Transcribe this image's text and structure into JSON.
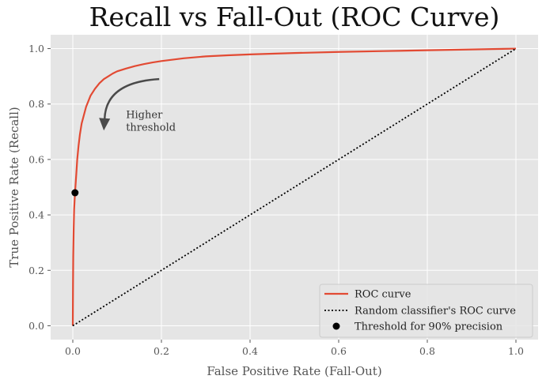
{
  "chart_data": {
    "type": "line",
    "title": "Recall vs Fall-Out (ROC Curve)",
    "xlabel": "False Positive Rate (Fall-Out)",
    "ylabel": "True Positive Rate (Recall)",
    "xlim": [
      -0.05,
      1.05
    ],
    "ylim": [
      -0.05,
      1.05
    ],
    "x_ticks": [
      "0.0",
      "0.2",
      "0.4",
      "0.6",
      "0.8",
      "1.0"
    ],
    "y_ticks": [
      "0.0",
      "0.2",
      "0.4",
      "0.6",
      "0.8",
      "1.0"
    ],
    "grid": true,
    "legend_position": "lower-right",
    "series": [
      {
        "name": "ROC curve",
        "color": "#e24a33",
        "style": "solid",
        "x": [
          0,
          0.0005,
          0.001,
          0.002,
          0.003,
          0.005,
          0.008,
          0.01,
          0.013,
          0.016,
          0.02,
          0.025,
          0.03,
          0.04,
          0.05,
          0.06,
          0.07,
          0.08,
          0.09,
          0.1,
          0.12,
          0.14,
          0.16,
          0.18,
          0.2,
          0.25,
          0.3,
          0.35,
          0.4,
          0.5,
          0.6,
          0.7,
          0.8,
          0.9,
          1.0
        ],
        "y": [
          0,
          0.15,
          0.25,
          0.35,
          0.42,
          0.48,
          0.55,
          0.6,
          0.65,
          0.69,
          0.73,
          0.76,
          0.79,
          0.83,
          0.855,
          0.875,
          0.89,
          0.9,
          0.91,
          0.918,
          0.928,
          0.937,
          0.944,
          0.95,
          0.955,
          0.965,
          0.972,
          0.976,
          0.979,
          0.984,
          0.988,
          0.991,
          0.994,
          0.997,
          1.0
        ]
      },
      {
        "name": "Random classifier's ROC curve",
        "color": "#000000",
        "style": "dotted",
        "x": [
          0,
          1
        ],
        "y": [
          0,
          1
        ]
      },
      {
        "name": "Threshold for 90% precision",
        "color": "#000000",
        "style": "marker",
        "x": [
          0.005
        ],
        "y": [
          0.48
        ]
      }
    ],
    "annotation": {
      "line1": "Higher",
      "line2": "threshold",
      "text_x": 0.12,
      "text_y": 0.75,
      "arrow_from": [
        0.195,
        0.89
      ],
      "arrow_to": [
        0.07,
        0.71
      ]
    }
  }
}
